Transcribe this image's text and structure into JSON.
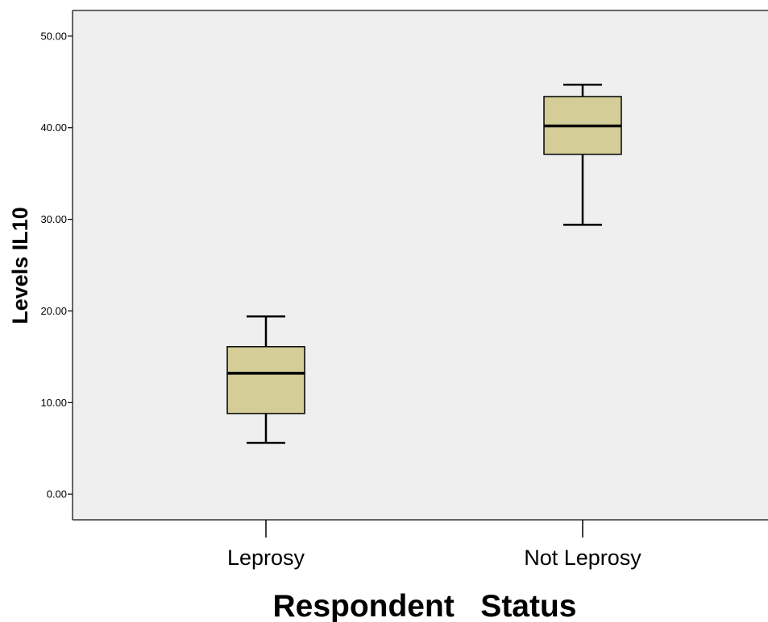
{
  "chart_data": {
    "type": "boxplot",
    "xlabel": "Respondent   Status",
    "ylabel": "Levels IL10",
    "categories": [
      "Leprosy",
      "Not Leprosy"
    ],
    "boxes": [
      {
        "category": "Leprosy",
        "min": 5.6,
        "q1": 8.8,
        "median": 13.2,
        "q3": 16.1,
        "max": 19.4
      },
      {
        "category": "Not Leprosy",
        "min": 29.4,
        "q1": 37.1,
        "median": 40.2,
        "q3": 43.4,
        "max": 44.7
      }
    ],
    "ylim": [
      -2.8,
      52.8
    ],
    "yticks": [
      0,
      10,
      20,
      30,
      40,
      50
    ],
    "ytick_labels": [
      "0.00",
      "10.00",
      "20.00",
      "30.00",
      "40.00",
      "50.00"
    ],
    "grid": false,
    "colors": {
      "plot_background": "#efefef",
      "box_fill": "#d4cd98",
      "line": "#000000"
    }
  }
}
